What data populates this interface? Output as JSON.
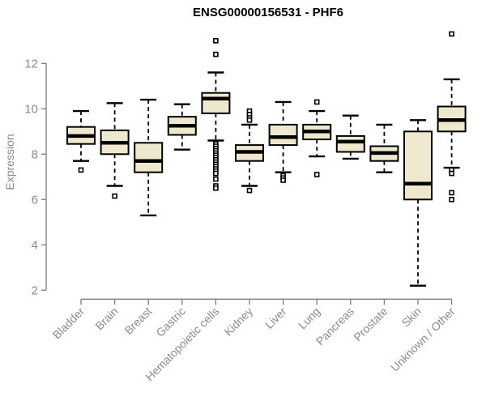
{
  "colors": {
    "background": "#FFFFFF",
    "title": "#000000",
    "axis": "#7D7D7D",
    "tick_label": "#8A8A8A",
    "box_fill": "#EEE8CF",
    "box_border": "#000000",
    "median": "#000000",
    "outlier": "#000000"
  },
  "chart_data": {
    "type": "boxplot",
    "title": "ENSG00000156531 - PHF6",
    "xlabel": "",
    "ylabel": "Expression",
    "yticks": [
      2,
      4,
      6,
      8,
      10,
      12
    ],
    "ylim": [
      1.6,
      13.6
    ],
    "grid": false,
    "legend": false,
    "categories": [
      "Bladder",
      "Brain",
      "Breast",
      "Gastric",
      "Hematopoietic cells",
      "Kidney",
      "Liver",
      "Lung",
      "Pancreas",
      "Prostate",
      "Skin",
      "Unknown / Other"
    ],
    "series": [
      {
        "name": "Bladder",
        "whisker_low": 7.7,
        "q1": 8.45,
        "median": 8.8,
        "q3": 9.2,
        "whisker_high": 9.9,
        "outliers": [
          7.3
        ]
      },
      {
        "name": "Brain",
        "whisker_low": 6.6,
        "q1": 8.0,
        "median": 8.5,
        "q3": 9.05,
        "whisker_high": 10.25,
        "outliers": [
          6.15
        ]
      },
      {
        "name": "Breast",
        "whisker_low": 5.3,
        "q1": 7.2,
        "median": 7.7,
        "q3": 8.5,
        "whisker_high": 10.4,
        "outliers": []
      },
      {
        "name": "Gastric",
        "whisker_low": 8.2,
        "q1": 8.85,
        "median": 9.25,
        "q3": 9.65,
        "whisker_high": 10.2,
        "outliers": []
      },
      {
        "name": "Hematopoietic cells",
        "whisker_low": 8.6,
        "q1": 9.8,
        "median": 10.45,
        "q3": 10.7,
        "whisker_high": 11.6,
        "outliers": [
          13.0,
          12.4,
          8.45,
          8.35,
          8.25,
          8.15,
          8.05,
          7.95,
          7.85,
          7.75,
          7.65,
          7.55,
          7.45,
          7.35,
          7.25,
          7.15,
          6.9,
          6.6,
          6.5
        ]
      },
      {
        "name": "Kidney",
        "whisker_low": 6.6,
        "q1": 7.7,
        "median": 8.1,
        "q3": 8.4,
        "whisker_high": 9.3,
        "outliers": [
          9.9,
          9.75,
          9.6,
          9.5,
          6.4
        ]
      },
      {
        "name": "Liver",
        "whisker_low": 7.2,
        "q1": 8.4,
        "median": 8.75,
        "q3": 9.3,
        "whisker_high": 10.3,
        "outliers": [
          7.05,
          6.95,
          6.85
        ]
      },
      {
        "name": "Lung",
        "whisker_low": 7.9,
        "q1": 8.65,
        "median": 9.0,
        "q3": 9.3,
        "whisker_high": 9.9,
        "outliers": [
          10.3,
          7.1
        ]
      },
      {
        "name": "Pancreas",
        "whisker_low": 7.8,
        "q1": 8.1,
        "median": 8.55,
        "q3": 8.8,
        "whisker_high": 9.7,
        "outliers": []
      },
      {
        "name": "Prostate",
        "whisker_low": 7.2,
        "q1": 7.7,
        "median": 8.05,
        "q3": 8.35,
        "whisker_high": 9.3,
        "outliers": []
      },
      {
        "name": "Skin",
        "whisker_low": 2.2,
        "q1": 6.0,
        "median": 6.7,
        "q3": 9.0,
        "whisker_high": 9.5,
        "outliers": []
      },
      {
        "name": "Unknown / Other",
        "whisker_low": 7.4,
        "q1": 9.0,
        "median": 9.5,
        "q3": 10.1,
        "whisker_high": 11.3,
        "outliers": [
          13.3,
          7.3,
          7.15,
          6.3,
          6.0
        ]
      }
    ]
  }
}
